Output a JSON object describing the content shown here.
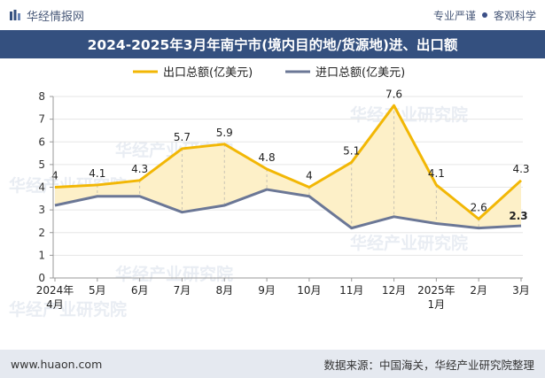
{
  "header": {
    "brand": "华经情报网",
    "tagline_left": "专业严谨",
    "tagline_right": "客观科学"
  },
  "title": "2024-2025年3月年南宁市(境内目的地/货源地)进、出口额",
  "footer": {
    "website": "www.huaon.com",
    "source": "数据来源：中国海关，华经产业研究院整理"
  },
  "watermark": "华经产业研究院",
  "colors": {
    "export": "#f2b705",
    "import": "#6b7796",
    "fill": "#fdf0c8",
    "title_bg": "#34507f"
  },
  "chart_data": {
    "type": "line",
    "categories": [
      "2024年\n4月",
      "5月",
      "6月",
      "7月",
      "8月",
      "9月",
      "10月",
      "11月",
      "12月",
      "2025年\n1月",
      "2月",
      "3月"
    ],
    "ylim": [
      0,
      8
    ],
    "yticks": [
      0,
      1,
      2,
      3,
      4,
      5,
      6,
      7,
      8
    ],
    "legend_position": "top-center",
    "series": [
      {
        "name": "出口总额(亿美元)",
        "values": [
          4,
          4.1,
          4.3,
          5.7,
          5.9,
          4.8,
          4,
          5.1,
          7.6,
          4.1,
          2.6,
          4.3
        ],
        "labels": [
          "4",
          "4.1",
          "4.3",
          "5.7",
          "5.9",
          "4.8",
          "4",
          "5.1",
          "7.6",
          "4.1",
          "2.6",
          "4.3"
        ]
      },
      {
        "name": "进口总额(亿美元)",
        "values": [
          3.2,
          3.6,
          3.6,
          2.9,
          3.2,
          3.9,
          3.6,
          2.2,
          2.7,
          2.4,
          2.2,
          2.3
        ],
        "labels": [
          null,
          null,
          null,
          null,
          null,
          null,
          null,
          null,
          null,
          null,
          null,
          "2.3"
        ]
      }
    ]
  }
}
